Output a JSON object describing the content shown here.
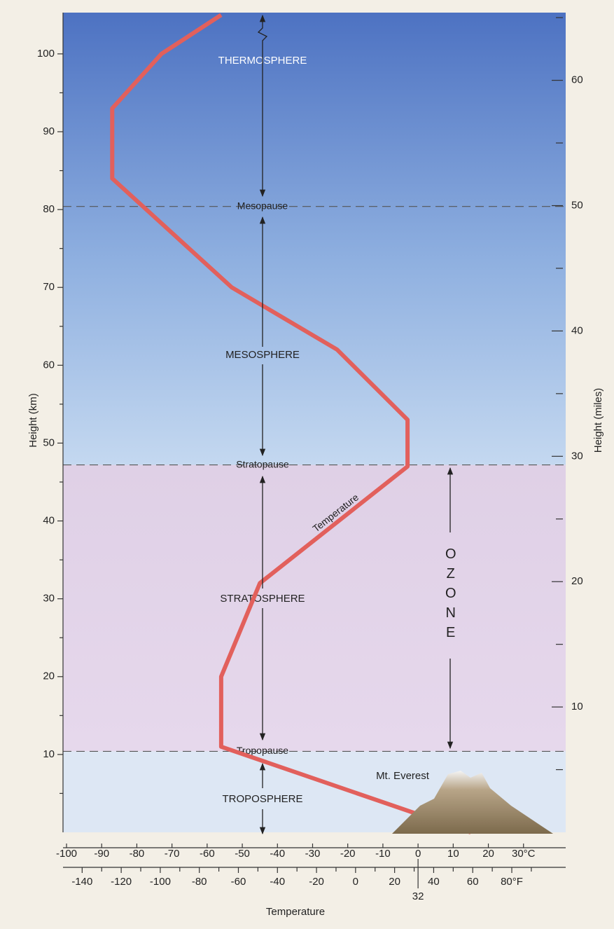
{
  "chart_data": {
    "type": "line",
    "x_label": "Temperature",
    "y_label": "Height (km)",
    "y2_label": "Height (miles)",
    "xlim": [
      -101,
      42
    ],
    "xticks": [
      -100,
      -90,
      -80,
      -70,
      -60,
      -50,
      -40,
      -30,
      -20,
      -10,
      0,
      10,
      20,
      {
        "value": 30,
        "label": "30°C"
      }
    ],
    "x2lim": [
      -149.8,
      107.6
    ],
    "x2ticks": [
      -140,
      -120,
      -100,
      -80,
      -60,
      -40,
      -20,
      0,
      20,
      40,
      60,
      {
        "value": 80,
        "label": "80°F"
      }
    ],
    "x2minor": [
      -130,
      -110,
      -90,
      -70,
      -50,
      -30,
      -10,
      10,
      30,
      50,
      70,
      90
    ],
    "x2special": 32,
    "ylim": [
      0,
      105.3
    ],
    "yticks": [
      10,
      20,
      30,
      40,
      50,
      60,
      70,
      80,
      90,
      100
    ],
    "yminor": [
      5,
      15,
      25,
      35,
      45,
      55,
      65,
      75,
      85,
      95
    ],
    "y2lim": [
      0,
      65.4
    ],
    "y2ticks": [
      10,
      20,
      30,
      40,
      50,
      60
    ],
    "y2minor": [
      5,
      15,
      25,
      35,
      45,
      55,
      65
    ],
    "series": [
      {
        "name": "Temperature",
        "color": "#e2605c",
        "x": [
          15,
          -56,
          -56,
          -45,
          -3,
          -3,
          -23,
          -53,
          -87,
          -87,
          -73,
          -56
        ],
        "values": [
          0,
          11,
          20,
          32,
          47,
          53,
          62,
          70,
          84,
          93,
          100,
          105
        ]
      }
    ],
    "boundaries": [
      {
        "label": "Mesopause",
        "height": 80.4
      },
      {
        "label": "Stratopause",
        "height": 47.2
      },
      {
        "label": "Tropopause",
        "height": 10.4
      }
    ],
    "regions": [
      "THERMOSPHERE",
      "MESOSPHERE",
      "STRATOSPHERE",
      "TROPOSPHERE"
    ],
    "annotations": [
      "Mt. Everest",
      "OZONE"
    ]
  }
}
